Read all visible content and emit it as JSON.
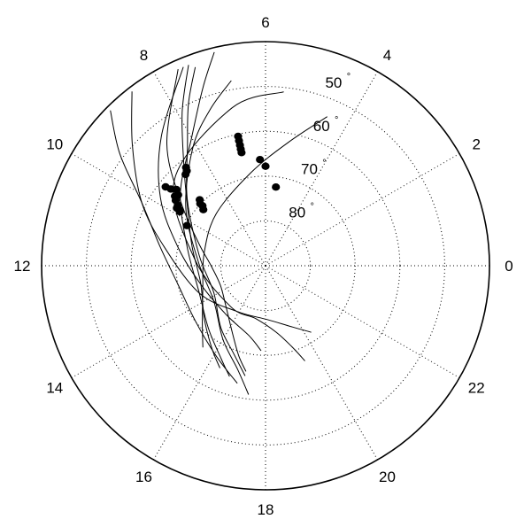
{
  "chart_data": {
    "type": "scatter",
    "coordinate_system": "polar",
    "angular_axis": {
      "quantity": "hour",
      "zero_direction": "right",
      "direction": "counterclockwise",
      "tick_labels": [
        "0",
        "2",
        "4",
        "6",
        "8",
        "10",
        "12",
        "14",
        "16",
        "18",
        "20",
        "22"
      ]
    },
    "radial_axis": {
      "quantity": "elevation",
      "center": 90,
      "outer": 40,
      "rings": [
        80,
        70,
        60,
        50
      ],
      "tick_labels": [
        "80",
        "70",
        "60",
        "50"
      ],
      "unit_symbol": "°"
    },
    "grid": true,
    "tracks": [
      {
        "points": [
          [
            7.6,
            42
          ],
          [
            8.6,
            55
          ],
          [
            9.5,
            66
          ],
          [
            10.7,
            74
          ],
          [
            12.1,
            78
          ],
          [
            13.6,
            79
          ],
          [
            15.2,
            77
          ],
          [
            16.3,
            73
          ],
          [
            16.9,
            69
          ],
          [
            17.3,
            66
          ]
        ]
      },
      {
        "points": [
          [
            7.4,
            42
          ],
          [
            7.9,
            51
          ],
          [
            8.6,
            61
          ],
          [
            9.5,
            68
          ],
          [
            11.0,
            73
          ],
          [
            13.0,
            75
          ],
          [
            14.7,
            72
          ],
          [
            15.8,
            68
          ],
          [
            16.4,
            65
          ]
        ]
      },
      {
        "points": [
          [
            7.3,
            43
          ],
          [
            7.7,
            50
          ],
          [
            8.2,
            58
          ],
          [
            9.3,
            67
          ],
          [
            11.4,
            75
          ],
          [
            13.8,
            77
          ],
          [
            15.6,
            73
          ],
          [
            16.7,
            69
          ],
          [
            17.3,
            65
          ]
        ]
      },
      {
        "points": [
          [
            6.7,
            48
          ],
          [
            7.3,
            53
          ],
          [
            8.1,
            59
          ],
          [
            9.6,
            68
          ],
          [
            11.8,
            75
          ],
          [
            14.3,
            76
          ],
          [
            16.0,
            71
          ],
          [
            17.0,
            66
          ],
          [
            17.5,
            61
          ]
        ]
      },
      {
        "points": [
          [
            5.6,
            51
          ],
          [
            6.8,
            54
          ],
          [
            9.1,
            62
          ],
          [
            11.6,
            74
          ],
          [
            15.3,
            78
          ],
          [
            17.3,
            78
          ],
          [
            18.6,
            75
          ],
          [
            19.2,
            71
          ],
          [
            19.5,
            67
          ]
        ]
      },
      {
        "points": [
          [
            9.0,
            41
          ],
          [
            9.5,
            49
          ],
          [
            10.2,
            59
          ],
          [
            11.3,
            66
          ],
          [
            12.8,
            70
          ],
          [
            14.6,
            70
          ],
          [
            16.1,
            67
          ],
          [
            17.1,
            63
          ]
        ]
      },
      {
        "points": [
          [
            8.5,
            41
          ],
          [
            9.2,
            50
          ],
          [
            10.2,
            59
          ],
          [
            11.3,
            67
          ],
          [
            13.5,
            74
          ],
          [
            15.9,
            78
          ],
          [
            18.1,
            78
          ],
          [
            19.6,
            75
          ],
          [
            20.3,
            72
          ]
        ]
      },
      {
        "points": [
          [
            7.5,
            42
          ],
          [
            8.6,
            53
          ],
          [
            9.8,
            62
          ],
          [
            11.2,
            70
          ],
          [
            13.1,
            75
          ],
          [
            15.4,
            76
          ],
          [
            17.1,
            74
          ],
          [
            17.8,
            71
          ]
        ]
      },
      {
        "points": [
          [
            6.9,
            41
          ],
          [
            7.3,
            48
          ],
          [
            8.0,
            57
          ],
          [
            9.3,
            65
          ],
          [
            11.1,
            72
          ],
          [
            13.5,
            74
          ],
          [
            15.2,
            71
          ],
          [
            16.3,
            67
          ],
          [
            16.8,
            64
          ]
        ]
      },
      {
        "points": [
          [
            4.5,
            54
          ],
          [
            5.3,
            62
          ],
          [
            6.6,
            69
          ],
          [
            8.9,
            74
          ],
          [
            11.2,
            76
          ],
          [
            13.4,
            75
          ],
          [
            14.8,
            71
          ],
          [
            15.5,
            67
          ]
        ]
      }
    ],
    "points": [
      [
        6.8,
        60.5
      ],
      [
        6.8,
        61.5
      ],
      [
        6.8,
        62.5
      ],
      [
        6.8,
        63.4
      ],
      [
        6.8,
        64.2
      ],
      [
        6.2,
        66.3
      ],
      [
        6.0,
        67.8
      ],
      [
        5.5,
        72.3
      ],
      [
        9.5,
        64.5
      ],
      [
        9.3,
        63.8
      ],
      [
        9.4,
        64.9
      ],
      [
        9.6,
        65.2
      ],
      [
        9.7,
        66.2
      ],
      [
        9.4,
        62.8
      ],
      [
        9.8,
        66.4
      ],
      [
        9.8,
        67.0
      ],
      [
        9.85,
        67.4
      ],
      [
        10.2,
        70.3
      ],
      [
        9.45,
        61.6
      ],
      [
        8.6,
        61.8
      ],
      [
        8.65,
        62.5
      ],
      [
        8.75,
        62.9
      ],
      [
        9.0,
        69.2
      ],
      [
        9.1,
        69.9
      ],
      [
        9.1,
        70.6
      ],
      [
        9.2,
        71.3
      ]
    ],
    "colors": {
      "lines": "#000000",
      "points": "#000000",
      "grid": "#000000"
    }
  }
}
